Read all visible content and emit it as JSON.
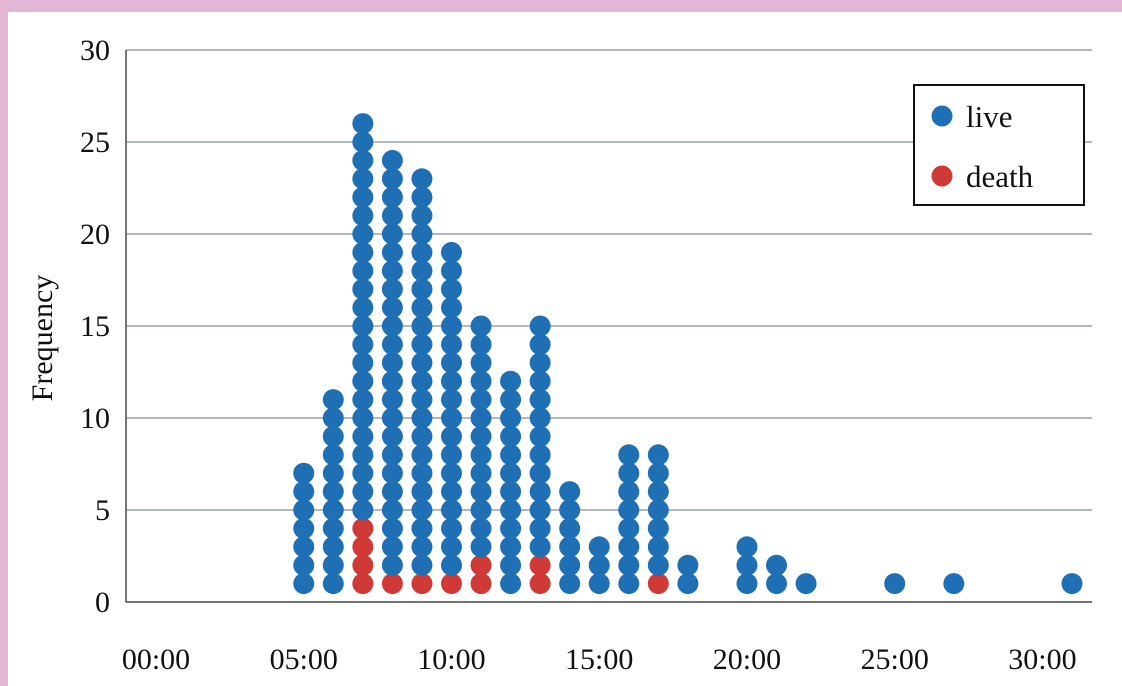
{
  "chart_data": {
    "type": "scatter",
    "style": "dot plot (stacked markers)",
    "title": "",
    "xlabel": "",
    "ylabel": "Frequency",
    "xlim": [
      "00:00",
      "31:00"
    ],
    "ylim": [
      0,
      30
    ],
    "x_ticks": [
      "00:00",
      "05:00",
      "10:00",
      "15:00",
      "20:00",
      "25:00",
      "30:00"
    ],
    "y_ticks": [
      "0",
      "5",
      "10",
      "15",
      "20",
      "25",
      "30"
    ],
    "grid": "horizontal",
    "legend_position": "top-right",
    "series": [
      {
        "name": "live",
        "color": "#1f6fb5",
        "points": [
          {
            "x": "05:00",
            "count": 7
          },
          {
            "x": "06:00",
            "count": 11
          },
          {
            "x": "07:00",
            "count": 22
          },
          {
            "x": "08:00",
            "count": 23
          },
          {
            "x": "09:00",
            "count": 22
          },
          {
            "x": "10:00",
            "count": 18
          },
          {
            "x": "11:00",
            "count": 13
          },
          {
            "x": "12:00",
            "count": 12
          },
          {
            "x": "13:00",
            "count": 13
          },
          {
            "x": "14:00",
            "count": 6
          },
          {
            "x": "15:00",
            "count": 3
          },
          {
            "x": "16:00",
            "count": 8
          },
          {
            "x": "17:00",
            "count": 7
          },
          {
            "x": "18:00",
            "count": 2
          },
          {
            "x": "20:00",
            "count": 3
          },
          {
            "x": "21:00",
            "count": 2
          },
          {
            "x": "22:00",
            "count": 1
          },
          {
            "x": "25:00",
            "count": 1
          },
          {
            "x": "27:00",
            "count": 1
          },
          {
            "x": "31:00",
            "count": 1
          }
        ]
      },
      {
        "name": "death",
        "color": "#d03a36",
        "points": [
          {
            "x": "07:00",
            "count": 4
          },
          {
            "x": "08:00",
            "count": 1
          },
          {
            "x": "09:00",
            "count": 1
          },
          {
            "x": "10:00",
            "count": 1
          },
          {
            "x": "11:00",
            "count": 2
          },
          {
            "x": "13:00",
            "count": 2
          },
          {
            "x": "17:00",
            "count": 1
          }
        ]
      }
    ]
  }
}
